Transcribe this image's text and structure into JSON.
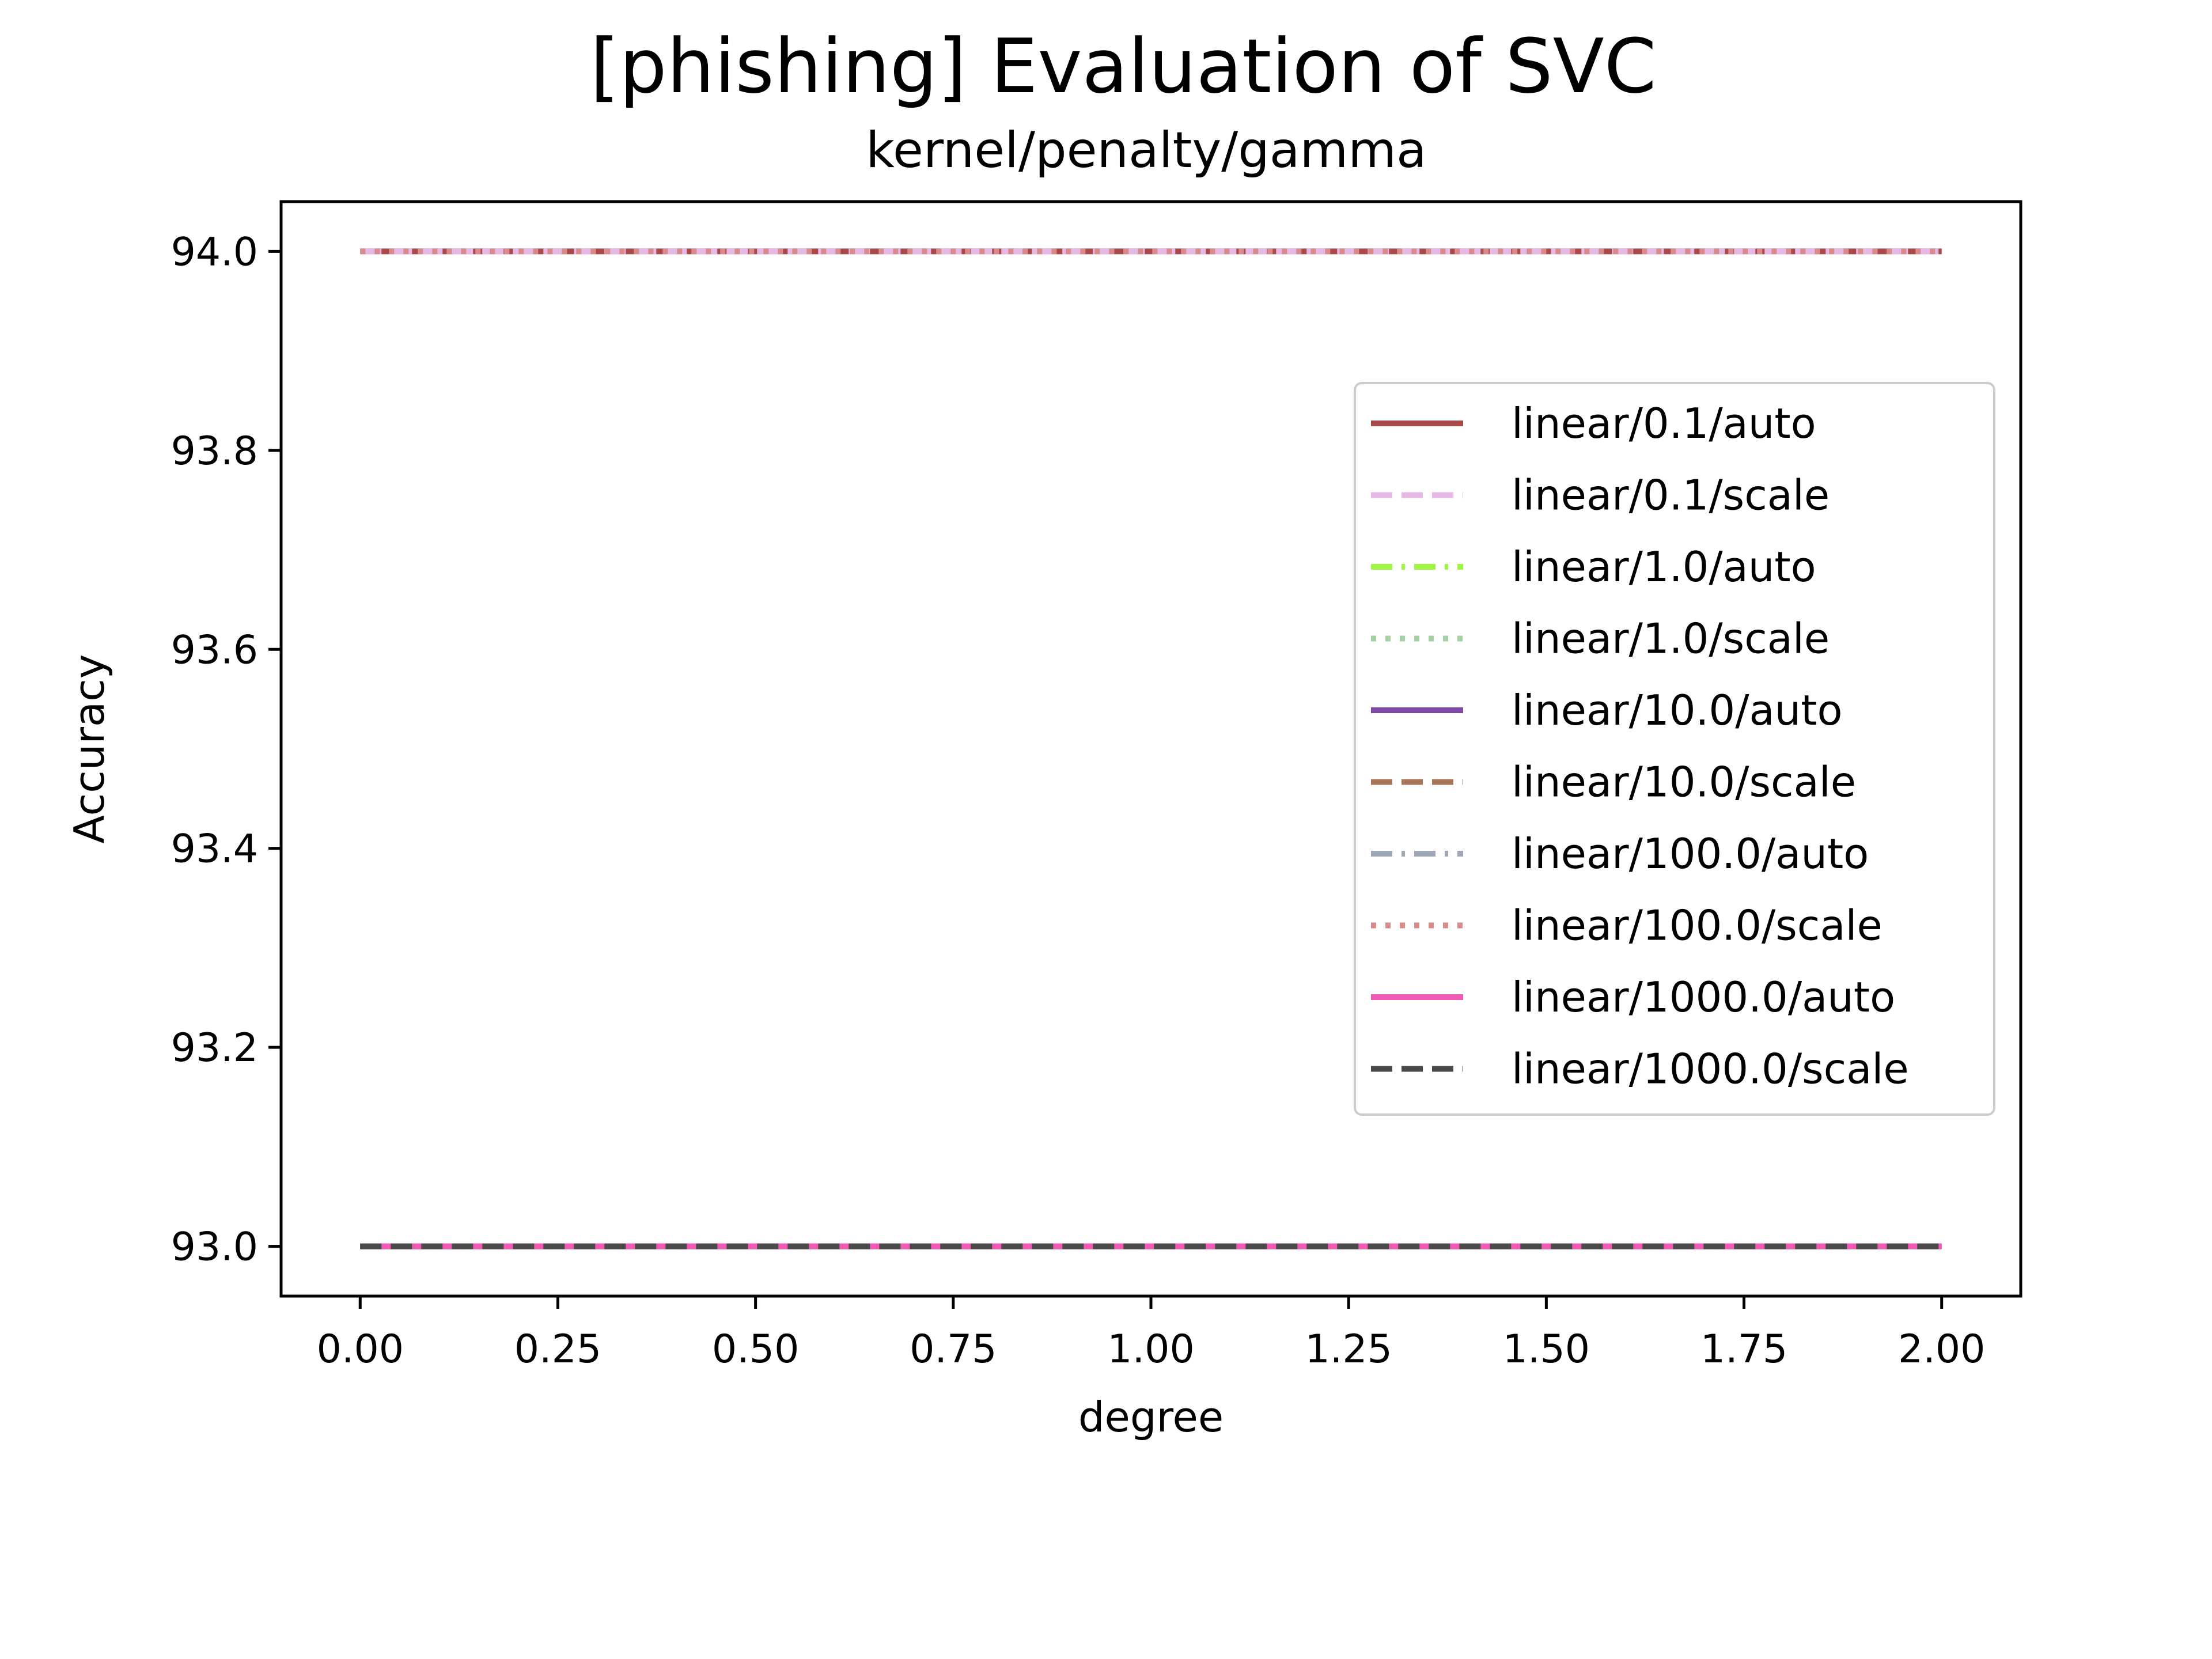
{
  "chart_data": {
    "type": "line",
    "title": "[phishing] Evaluation of SVC",
    "subtitle": "kernel/penalty/gamma",
    "xlabel": "degree",
    "ylabel": "Accuracy",
    "xlim": [
      -0.1,
      2.1
    ],
    "ylim": [
      92.95,
      94.05
    ],
    "xticks": [
      "0.00",
      "0.25",
      "0.50",
      "0.75",
      "1.00",
      "1.25",
      "1.50",
      "1.75",
      "2.00"
    ],
    "yticks": [
      "93.0",
      "93.2",
      "93.4",
      "93.6",
      "93.8",
      "94.0"
    ],
    "grid": false,
    "legend_position": "center-right",
    "x": [
      0,
      1,
      2
    ],
    "series": [
      {
        "name": "linear/0.1/auto",
        "values": [
          94.0,
          94.0,
          94.0
        ],
        "color": "#a94a4a",
        "style": "solid"
      },
      {
        "name": "linear/0.1/scale",
        "values": [
          94.0,
          94.0,
          94.0
        ],
        "color": "#e6b8e6",
        "style": "dashed"
      },
      {
        "name": "linear/1.0/auto",
        "values": [
          93.0,
          93.0,
          93.0
        ],
        "color": "#9ef542",
        "style": "dashdot"
      },
      {
        "name": "linear/1.0/scale",
        "values": [
          93.0,
          93.0,
          93.0
        ],
        "color": "#a3d1a3",
        "style": "dotted"
      },
      {
        "name": "linear/10.0/auto",
        "values": [
          93.0,
          93.0,
          93.0
        ],
        "color": "#7d4aa3",
        "style": "solid"
      },
      {
        "name": "linear/10.0/scale",
        "values": [
          93.0,
          93.0,
          93.0
        ],
        "color": "#a9765a",
        "style": "dashed"
      },
      {
        "name": "linear/100.0/auto",
        "values": [
          93.0,
          93.0,
          93.0
        ],
        "color": "#a0a8b8",
        "style": "dashdot"
      },
      {
        "name": "linear/100.0/scale",
        "values": [
          94.0,
          94.0,
          94.0
        ],
        "color": "#d98a8a",
        "style": "dotted"
      },
      {
        "name": "linear/1000.0/auto",
        "values": [
          93.0,
          93.0,
          93.0
        ],
        "color": "#f05ab4",
        "style": "solid"
      },
      {
        "name": "linear/1000.0/scale",
        "values": [
          93.0,
          93.0,
          93.0
        ],
        "color": "#4a4a4a",
        "style": "dashed"
      }
    ]
  }
}
